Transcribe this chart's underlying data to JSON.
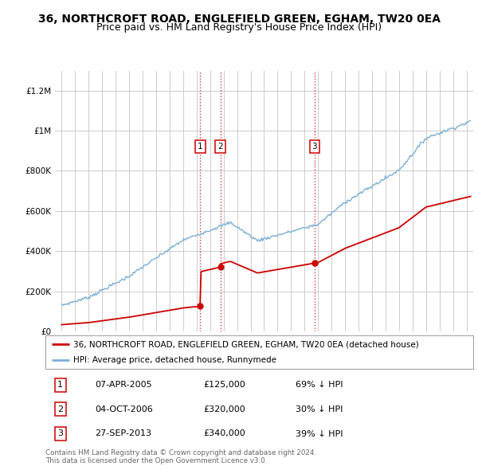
{
  "title": "36, NORTHCROFT ROAD, ENGLEFIELD GREEN, EGHAM, TW20 0EA",
  "subtitle": "Price paid vs. HM Land Registry's House Price Index (HPI)",
  "ylabel_ticks": [
    "£0",
    "£200K",
    "£400K",
    "£600K",
    "£800K",
    "£1M",
    "£1.2M"
  ],
  "ytick_values": [
    0,
    200000,
    400000,
    600000,
    800000,
    1000000,
    1200000
  ],
  "ylim": [
    0,
    1300000
  ],
  "xlim_start": 1994.5,
  "xlim_end": 2025.5,
  "sale_dates": [
    2005.27,
    2006.76,
    2013.74
  ],
  "sale_prices": [
    125000,
    320000,
    340000
  ],
  "sale_labels": [
    "1",
    "2",
    "3"
  ],
  "vline_color": "#cc0000",
  "property_color": "#cc0000",
  "hpi_color": "#7bafd4",
  "legend_property": "36, NORTHCROFT ROAD, ENGLEFIELD GREEN, EGHAM, TW20 0EA (detached house)",
  "legend_hpi": "HPI: Average price, detached house, Runnymede",
  "table_entries": [
    {
      "num": "1",
      "date": "07-APR-2005",
      "price": "£125,000",
      "pct": "69% ↓ HPI"
    },
    {
      "num": "2",
      "date": "04-OCT-2006",
      "price": "£320,000",
      "pct": "30% ↓ HPI"
    },
    {
      "num": "3",
      "date": "27-SEP-2013",
      "price": "£340,000",
      "pct": "39% ↓ HPI"
    }
  ],
  "footnote": "Contains HM Land Registry data © Crown copyright and database right 2024.\nThis data is licensed under the Open Government Licence v3.0.",
  "background_color": "#ffffff",
  "grid_color": "#cccccc",
  "title_fontsize": 10,
  "subtitle_fontsize": 9
}
